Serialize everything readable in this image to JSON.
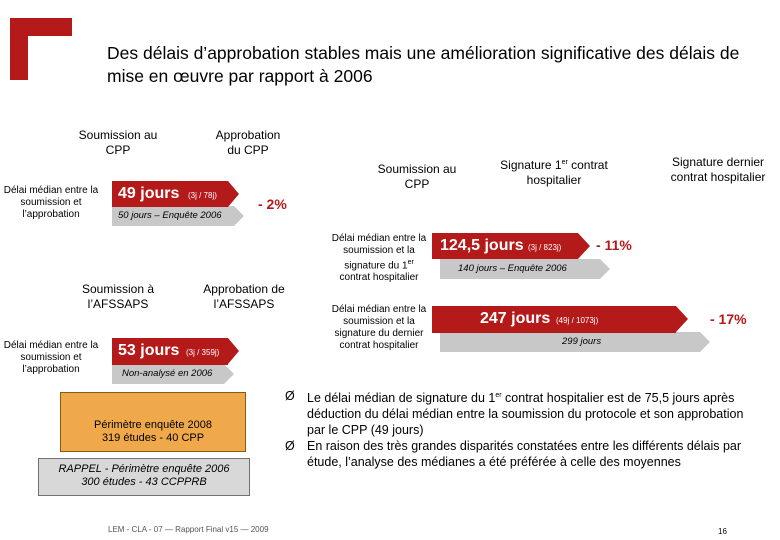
{
  "title": "Des délais d’approbation stables mais une amélioration significative des délais de mise en œuvre par rapport à 2006",
  "colors": {
    "accent": "#b51a1a",
    "bar_gray": "#c8c8c8",
    "highlight": "#f0a94a"
  },
  "block_cpp": {
    "start": "Soumission au CPP",
    "end": "Approbation du CPP",
    "side_label": "Délai médian entre la soumission et l’approbation",
    "value": "49 jours",
    "range": "(3j / 78j)",
    "previous": "50 jours – Enquête 2006",
    "change": "- 2%"
  },
  "block_afssaps": {
    "start": "Soumission à l’AFSSAPS",
    "end": "Approbation de l’AFSSAPS",
    "side_label": "Délai médian entre la soumission et l’approbation",
    "value": "53 jours",
    "range": "(3j / 359j)",
    "previous": "Non-analysé en 2006"
  },
  "block_contracts": {
    "start": "Soumission au CPP",
    "first_contract": "Signature 1er contrat hospitalier",
    "first_contract_base": "Signature 1",
    "first_contract_sup": "er",
    "first_contract_rest": " contrat hospitalier",
    "last_contract": "Signature dernier contrat hospitalier",
    "first": {
      "side_label": "Délai médian entre la soumission et la signature du 1er contrat hospitalier",
      "side_label_base": "Délai médian entre la soumission et la signature du 1",
      "side_label_sup": "er",
      "side_label_rest": " contrat hospitalier",
      "value": "124,5 jours",
      "range": "(3j / 823j)",
      "previous": "140 jours – Enquête 2006",
      "change": "- 11%"
    },
    "last": {
      "side_label": "Délai médian entre la soumission et la signature du dernier contrat hospitalier",
      "value": "247 jours",
      "range": "(49j / 1073j)",
      "previous": "299 jours",
      "change": "- 17%"
    }
  },
  "scope_box": {
    "line1": "Périmètre enquête 2008",
    "line2": "319 études - 40 CPP"
  },
  "reminder_box": {
    "line1": "RAPPEL - Périmètre enquête 2006",
    "line2": "300 études - 43 CCPPRB"
  },
  "bullets": [
    {
      "text": "Le délai médian de signature du 1er contrat hospitalier est de 75,5 jours après déduction du délai médian entre la soumission du protocole et son approbation par le CPP (49 jours)",
      "text_base": "Le délai médian de signature du 1",
      "text_sup": "er",
      "text_rest": " contrat hospitalier est de 75,5 jours après déduction du délai médian entre la soumission du protocole et son approbation par le CPP (49 jours)"
    },
    {
      "text": "En raison des très grandes disparités constatées entre les différents délais par étude, l’analyse des médianes a été préférée à celle des moyennes"
    }
  ],
  "bullet_marker": "Ø",
  "footer": "LEM - CLA - 07 — Rapport Final v15 — 2009",
  "page_number": "16",
  "icons": {
    "logo": "red-bracket-logo",
    "bullet": "arrow-bullet-icon"
  }
}
